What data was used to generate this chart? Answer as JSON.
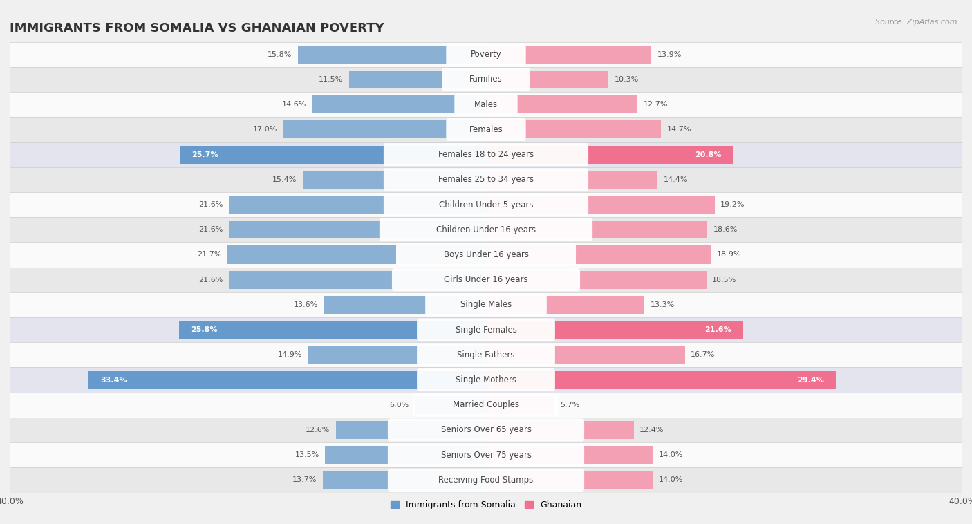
{
  "title": "IMMIGRANTS FROM SOMALIA VS GHANAIAN POVERTY",
  "source": "Source: ZipAtlas.com",
  "categories": [
    "Poverty",
    "Families",
    "Males",
    "Females",
    "Females 18 to 24 years",
    "Females 25 to 34 years",
    "Children Under 5 years",
    "Children Under 16 years",
    "Boys Under 16 years",
    "Girls Under 16 years",
    "Single Males",
    "Single Females",
    "Single Fathers",
    "Single Mothers",
    "Married Couples",
    "Seniors Over 65 years",
    "Seniors Over 75 years",
    "Receiving Food Stamps"
  ],
  "somalia_values": [
    15.8,
    11.5,
    14.6,
    17.0,
    25.7,
    15.4,
    21.6,
    21.6,
    21.7,
    21.6,
    13.6,
    25.8,
    14.9,
    33.4,
    6.0,
    12.6,
    13.5,
    13.7
  ],
  "ghanaian_values": [
    13.9,
    10.3,
    12.7,
    14.7,
    20.8,
    14.4,
    19.2,
    18.6,
    18.9,
    18.5,
    13.3,
    21.6,
    16.7,
    29.4,
    5.7,
    12.4,
    14.0,
    14.0
  ],
  "somalia_color": "#8ab0d4",
  "ghanaian_color": "#f4a0b4",
  "somalia_highlight_color": "#6699cc",
  "ghanaian_highlight_color": "#f07090",
  "highlight_indices": [
    4,
    11,
    13
  ],
  "xlim": 40.0,
  "bar_height": 0.72,
  "background_color": "#f0f0f0",
  "row_light": "#fafafa",
  "row_dark": "#e8e8e8",
  "label_fontsize": 8.5,
  "value_fontsize": 8.0,
  "title_fontsize": 13
}
